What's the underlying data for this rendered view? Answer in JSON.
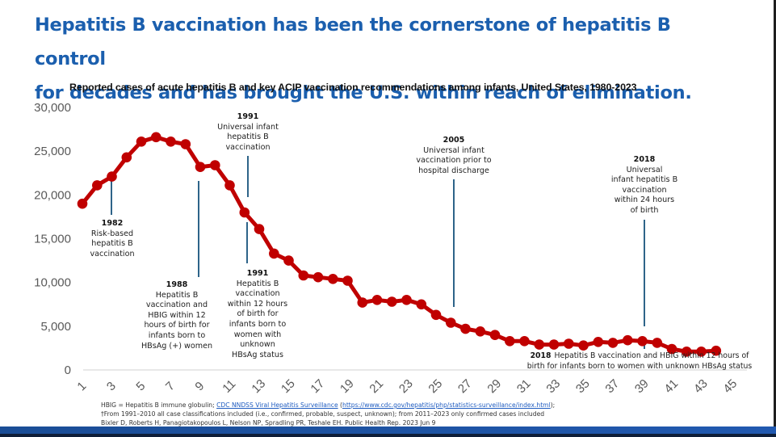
{
  "headline": {
    "line1": "Hepatitis B vaccination has been the cornerstone of hepatitis B control",
    "line2": "for decades and has brought the U.S. within reach of elimination."
  },
  "colors": {
    "headline": "#1b5fae",
    "series": "#c00000",
    "annotation_line": "#2e6489",
    "axis_text": "#595959",
    "bottom_bar": "#1f58aa"
  },
  "annotations": [
    {
      "year": "1982",
      "text_lines": [
        "Risk-based",
        "hepatitis B",
        "vaccination"
      ]
    },
    {
      "year": "1988",
      "text_lines": [
        "Hepatitis B",
        "vaccination and",
        "HBIG within 12",
        "hours of birth for",
        "infants born to",
        "HBsAg (+) women"
      ]
    },
    {
      "year": "1991",
      "text_lines": [
        "Universal infant",
        "hepatitis B",
        "vaccination"
      ]
    },
    {
      "year": "1991",
      "text_lines": [
        "Hepatitis B",
        "vaccination",
        "within 12 hours",
        "of birth for",
        "infants born to",
        "women with",
        "unknown",
        "HBsAg status"
      ]
    },
    {
      "year": "2005",
      "text_lines": [
        "Universal infant",
        "vaccination prior to",
        "hospital discharge"
      ]
    },
    {
      "year": "2018",
      "text_lines": [
        "Universal",
        "infant hepatitis B",
        "vaccination",
        "within 24 hours",
        "of birth"
      ]
    },
    {
      "year": "2018",
      "text_lines": [
        "Hepatitis B vaccination and HBIG within 12 hours of",
        "birth for infants born to women with unknown HBsAg status"
      ]
    }
  ],
  "footer": {
    "line1_prefix": "HBIG = Hepatitis B immune globulin; ",
    "line1_link": "CDC NNDSS Viral Hepatitis Surveillance",
    "line1_mid": " (",
    "line1_url": "https://www.cdc.gov/hepatitis/php/statistics-surveillance/index.html",
    "line1_suffix": ");",
    "line2": "†From 1991–2010 all case classifications included (i.e., confirmed, probable, suspect, unknown); from 2011–2023 only confirmed cases included",
    "line3": "Bixler D, Roberts H, Panagiotakopoulos L, Nelson NP, Spradling PR, Teshale EH. Public Health Rep. 2023 Jun 9"
  },
  "chart_data": {
    "type": "line",
    "title": "Reported cases of acute hepatitis B and key ACIP vaccination recommendations among infants, United States, 1980-2023",
    "xlabel": "",
    "ylabel": "",
    "xlim": [
      1,
      45
    ],
    "ylim": [
      0,
      30000
    ],
    "grid": false,
    "x_tick_labels": [
      "1",
      "3",
      "5",
      "7",
      "9",
      "11",
      "13",
      "15",
      "17",
      "19",
      "21",
      "23",
      "25",
      "27",
      "29",
      "31",
      "33",
      "35",
      "37",
      "39",
      "41",
      "43",
      "45"
    ],
    "y_tick_labels": [
      "0",
      "5,000",
      "10,000",
      "15,000",
      "20,000",
      "25,000",
      "30,000"
    ],
    "y_tick_values": [
      0,
      5000,
      10000,
      15000,
      20000,
      25000,
      30000
    ],
    "series": [
      {
        "name": "Reported cases of acute hepatitis B",
        "x": [
          1,
          2,
          3,
          4,
          5,
          6,
          7,
          8,
          9,
          10,
          11,
          12,
          13,
          14,
          15,
          16,
          17,
          18,
          19,
          20,
          21,
          22,
          23,
          24,
          25,
          26,
          27,
          28,
          29,
          30,
          31,
          32,
          33,
          34,
          35,
          36,
          37,
          38,
          39,
          40,
          41,
          42,
          43,
          44
        ],
        "values": [
          19000,
          21100,
          22100,
          24300,
          26100,
          26600,
          26100,
          25800,
          23200,
          23400,
          21100,
          18000,
          16100,
          13300,
          12500,
          10800,
          10600,
          10400,
          10200,
          7700,
          8000,
          7800,
          8000,
          7500,
          6300,
          5400,
          4700,
          4400,
          4000,
          3300,
          3300,
          2900,
          2900,
          3000,
          2800,
          3200,
          3100,
          3400,
          3300,
          3100,
          2400,
          2100,
          2100,
          2200
        ]
      }
    ],
    "annotation_markers": [
      {
        "year": "1982",
        "x": 3
      },
      {
        "year": "1988",
        "x": 9
      },
      {
        "year": "1991",
        "x": 12
      },
      {
        "year": "2005",
        "x": 26
      },
      {
        "year": "2018",
        "x": 39
      }
    ]
  }
}
